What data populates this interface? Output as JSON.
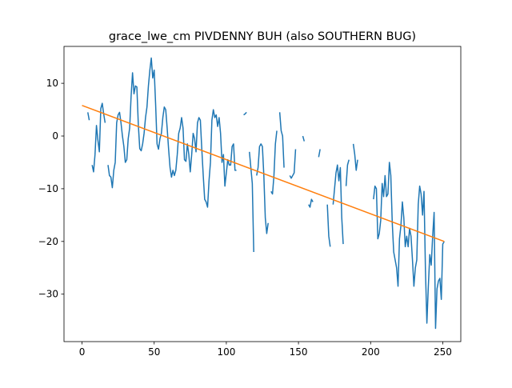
{
  "chart_data": {
    "type": "line",
    "title": "grace_lwe_cm PIVDENNY BUH (also SOUTHERN BUG)",
    "xlabel": "",
    "ylabel": "",
    "xlim": [
      -12.5,
      262.5
    ],
    "ylim": [
      -39,
      17
    ],
    "xticks": [
      0,
      50,
      100,
      150,
      200,
      250
    ],
    "yticks": [
      -30,
      -20,
      -10,
      0,
      10
    ],
    "grid": false,
    "legend": "none",
    "colors": {
      "series": "#1f77b4",
      "trend": "#ff7f0e"
    },
    "series": [
      {
        "values": [
          null,
          null,
          null,
          null,
          4.5,
          3.0,
          null,
          -5.5,
          -6.8,
          -3.5,
          2.0,
          -0.8,
          -3.0,
          5.2,
          6.2,
          4.2,
          2.5,
          null,
          -5.5,
          -7.5,
          -7.8,
          -9.8,
          -6.5,
          -5.0,
          2.5,
          4.0,
          4.5,
          2.5,
          0.0,
          -2.0,
          -5.0,
          -4.5,
          -0.5,
          1.5,
          7.5,
          12.0,
          8.0,
          9.5,
          9.3,
          2.2,
          -2.4,
          -2.8,
          -1.5,
          0.5,
          3.5,
          5.5,
          9.5,
          12.5,
          14.8,
          11.0,
          12.5,
          6.0,
          -1.5,
          -2.5,
          -0.5,
          0.5,
          3.5,
          5.5,
          5.0,
          1.5,
          -2.5,
          -6.0,
          -7.8,
          -6.5,
          -7.5,
          -6.5,
          -3.5,
          0.5,
          1.5,
          3.5,
          1.5,
          -4.5,
          -4.8,
          -1.5,
          -3.5,
          -6.8,
          -3.5,
          0.5,
          -0.5,
          -3.0,
          2.5,
          3.5,
          3.0,
          -2.5,
          -7.5,
          -12.0,
          -12.5,
          -13.5,
          -8.5,
          -5.0,
          3.0,
          5.0,
          3.5,
          4.0,
          1.8,
          3.5,
          0.5,
          -5.0,
          -3.5,
          -9.5,
          -7.0,
          -4.5,
          -5.5,
          -5.5,
          -2.0,
          -1.5,
          -6.5,
          -6.5,
          null,
          null,
          null,
          null,
          4.0,
          4.2,
          4.5,
          null,
          -3.0,
          -6.0,
          -9.0,
          -22.0,
          null,
          -7.5,
          -6.0,
          -2.0,
          -1.5,
          -2.0,
          -7.5,
          -15.5,
          -18.5,
          -16.5,
          null,
          -10.5,
          -11.0,
          -7.5,
          -1.5,
          1.0,
          null,
          4.5,
          1.0,
          0.0,
          -6.0,
          null,
          null,
          null,
          -7.5,
          -8.0,
          -7.5,
          -7.0,
          -2.5,
          null,
          null,
          null,
          null,
          0.0,
          -1.0,
          null,
          null,
          -13.0,
          -13.5,
          -12.0,
          -12.5,
          null,
          null,
          null,
          -4.0,
          -2.5,
          null,
          null,
          null,
          null,
          -13.0,
          -19.0,
          -21.0,
          null,
          -13.0,
          -10.0,
          -7.0,
          -5.5,
          -8.5,
          -6.0,
          -15.5,
          -20.5,
          null,
          -9.5,
          -5.5,
          -4.5,
          null,
          null,
          -1.5,
          -3.5,
          -6.5,
          -4.5,
          null,
          null,
          null,
          null,
          null,
          null,
          null,
          null,
          null,
          null,
          -12.0,
          -9.5,
          -10.0,
          -19.5,
          -18.5,
          -16.0,
          -9.0,
          -11.5,
          -7.5,
          -11.5,
          -11.0,
          -5.0,
          -7.5,
          -16.5,
          -22.0,
          -23.5,
          -25.0,
          -28.5,
          -19.5,
          -17.0,
          -12.5,
          -15.5,
          -21.0,
          -19.0,
          -21.0,
          -17.5,
          -19.0,
          -23.5,
          -28.5,
          -25.0,
          -23.5,
          -13.0,
          -9.5,
          -11.0,
          -15.0,
          -10.5,
          -25.5,
          -35.5,
          -28.5,
          -22.5,
          -24.5,
          -19.0,
          -14.5,
          -36.5,
          -29.0,
          -27.5,
          -27.0,
          -31.0,
          -20.5,
          -20.0
        ]
      },
      {
        "values_x": [
          0,
          251
        ],
        "values": [
          5.8,
          -20.0
        ]
      }
    ]
  }
}
